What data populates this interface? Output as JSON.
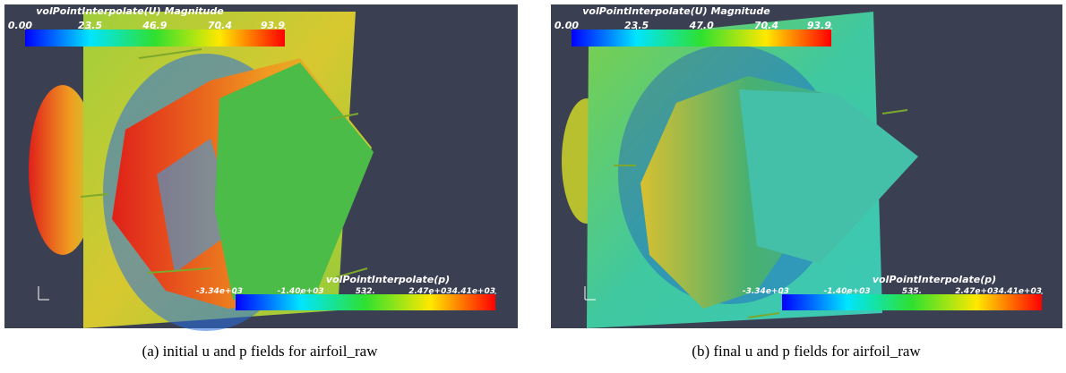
{
  "panels": [
    {
      "caption": "(a) initial u and p fields for airfoil_raw",
      "colorbars": [
        {
          "title": "volPointInterpolate(U) Magnitude",
          "ticks": [
            {
              "value": 0,
              "label": "0.00"
            },
            23.5,
            46.9,
            70.4,
            93.9
          ]
        },
        {
          "title": "volPointInterpolate(p)",
          "ticks": [
            {
              "value": -3340,
              "label": "-3.34e+03"
            },
            {
              "value": -1400,
              "label": "-1.40e+03"
            },
            {
              "value": 532,
              "label": "532."
            },
            {
              "value": 2470,
              "label": "2.47e+03"
            },
            {
              "value": 4410,
              "label": "4.41e+03"
            }
          ]
        }
      ]
    },
    {
      "caption": "(b) final u and p fields for airfoil_raw",
      "colorbars": [
        {
          "title": "volPointInterpolate(U) Magnitude",
          "ticks": [
            {
              "value": 0,
              "label": "0.00"
            },
            23.5,
            {
              "value": 47,
              "label": "47.0"
            },
            70.4,
            93.9
          ]
        },
        {
          "title": "volPointInterpolate(p)",
          "ticks": [
            {
              "value": -3340,
              "label": "-3.34e+03"
            },
            {
              "value": -1400,
              "label": "-1.40e+03"
            },
            {
              "value": 535,
              "label": "535."
            },
            {
              "value": 2470,
              "label": "2.47e+03"
            },
            {
              "value": 4410,
              "label": "4.41e+03"
            }
          ]
        }
      ]
    }
  ]
}
